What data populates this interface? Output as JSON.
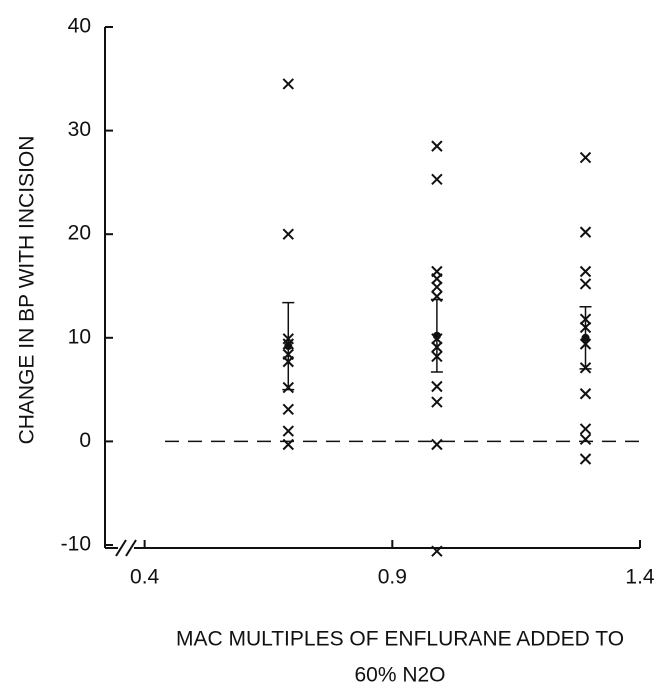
{
  "chart_data": {
    "type": "scatter",
    "y_label": "CHANGE IN BP WITH INCISION",
    "x_label": [
      "MAC MULTIPLES OF ENFLURANE ADDED TO",
      "60% N2O"
    ],
    "xlim": [
      0.32,
      1.4
    ],
    "ylim": [
      -10,
      40
    ],
    "xticks": [
      0.4,
      0.9,
      1.4
    ],
    "yticks": [
      -10,
      0,
      10,
      20,
      30,
      40
    ],
    "reference_line": 0,
    "color": "#111111",
    "series": [
      {
        "x": [
          0.69,
          0.69,
          0.69,
          0.69,
          0.69,
          0.69,
          0.69,
          0.69,
          0.69,
          0.69
        ],
        "values": [
          34.5,
          20,
          9.9,
          9.4,
          8.4,
          7.7,
          5.2,
          3.1,
          1,
          -0.3
        ]
      },
      {
        "x": [
          0.99,
          0.99,
          0.99,
          0.99,
          0.99,
          0.99,
          0.99,
          0.99,
          0.99,
          0.99,
          0.99,
          0.99,
          0.99
        ],
        "values": [
          28.5,
          25.3,
          16.4,
          15.7,
          14.9,
          14,
          9.9,
          9.1,
          8.2,
          5.3,
          3.8,
          -0.3,
          -10.6
        ]
      },
      {
        "x": [
          1.29,
          1.29,
          1.29,
          1.29,
          1.29,
          1.29,
          1.29,
          1.29,
          1.29,
          1.29,
          1.29,
          1.29
        ],
        "values": [
          27.4,
          20.2,
          16.4,
          15.2,
          11.8,
          11,
          9.4,
          7.1,
          4.6,
          1.2,
          0.2,
          -1.7
        ]
      }
    ],
    "error_bars": {
      "x": [
        0.69,
        0.99,
        1.29
      ],
      "values": [
        9.2,
        10.2,
        10
      ],
      "errors": [
        4.2,
        3.5,
        3
      ]
    }
  }
}
